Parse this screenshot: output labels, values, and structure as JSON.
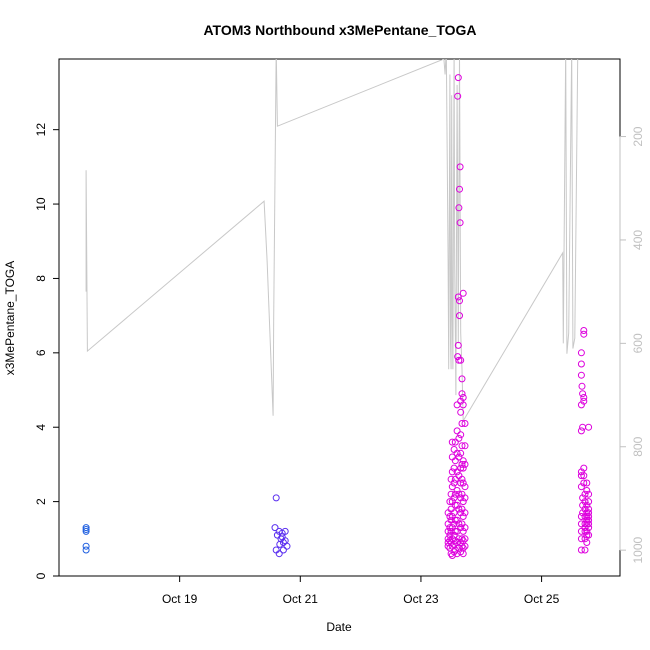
{
  "chart_data": {
    "type": "scatter",
    "title": "ATOM3 Northbound x3MePentane_TOGA",
    "xlabel": "Date",
    "ylabel": "x3MePentane_TOGA",
    "x_ticks": [
      "Oct 19",
      "Oct 21",
      "Oct 23",
      "Oct 25"
    ],
    "x_tick_days": [
      19,
      21,
      23,
      25
    ],
    "xlim_days": [
      17.0,
      26.3
    ],
    "ylim": [
      0,
      13.9
    ],
    "y_ticks": [
      0,
      2,
      4,
      6,
      8,
      10,
      12
    ],
    "y2_axis": {
      "label": "",
      "ticks": [
        200,
        400,
        600,
        800,
        1000
      ],
      "lim": [
        1050,
        50
      ],
      "reversed": true,
      "color": "#c0c0c0"
    },
    "grid": false,
    "colors": {
      "early": "#1f5fe0",
      "late": "#dd00dd",
      "line": "#c8c8c8"
    },
    "series": [
      {
        "type": "scatter",
        "color": "#1f5fe0",
        "points": [
          [
            17.45,
            1.3
          ],
          [
            17.45,
            1.25
          ],
          [
            17.45,
            1.2
          ],
          [
            17.45,
            0.8
          ],
          [
            17.45,
            0.7
          ]
        ]
      },
      {
        "type": "scatter",
        "color": "#5a2ef0",
        "points": [
          [
            20.6,
            2.1
          ],
          [
            20.58,
            1.3
          ],
          [
            20.65,
            1.2
          ],
          [
            20.7,
            1.15
          ],
          [
            20.68,
            1.0
          ],
          [
            20.6,
            0.7
          ],
          [
            20.65,
            0.6
          ],
          [
            20.75,
            1.2
          ],
          [
            20.72,
            0.9
          ],
          [
            20.78,
            0.8
          ],
          [
            20.72,
            0.7
          ],
          [
            20.7,
            1.05
          ],
          [
            20.75,
            0.95
          ],
          [
            20.66,
            0.85
          ],
          [
            20.62,
            1.1
          ]
        ]
      },
      {
        "type": "scatter",
        "color": "#dd00dd",
        "points": [
          [
            23.45,
            1.7
          ],
          [
            23.45,
            1.4
          ],
          [
            23.45,
            1.2
          ],
          [
            23.45,
            1.0
          ],
          [
            23.45,
            0.9
          ],
          [
            23.45,
            0.8
          ],
          [
            23.48,
            2.0
          ],
          [
            23.48,
            1.6
          ],
          [
            23.48,
            1.3
          ],
          [
            23.48,
            1.1
          ],
          [
            23.48,
            0.95
          ],
          [
            23.48,
            0.75
          ],
          [
            23.5,
            2.6
          ],
          [
            23.5,
            2.2
          ],
          [
            23.5,
            1.8
          ],
          [
            23.5,
            1.5
          ],
          [
            23.5,
            1.2
          ],
          [
            23.5,
            0.9
          ],
          [
            23.5,
            0.6
          ],
          [
            23.52,
            3.6
          ],
          [
            23.52,
            3.2
          ],
          [
            23.52,
            2.8
          ],
          [
            23.52,
            2.4
          ],
          [
            23.52,
            2.0
          ],
          [
            23.52,
            1.6
          ],
          [
            23.52,
            1.3
          ],
          [
            23.52,
            1.0
          ],
          [
            23.52,
            0.8
          ],
          [
            23.52,
            0.55
          ],
          [
            23.55,
            3.4
          ],
          [
            23.55,
            2.9
          ],
          [
            23.55,
            2.5
          ],
          [
            23.55,
            2.1
          ],
          [
            23.55,
            1.7
          ],
          [
            23.55,
            1.4
          ],
          [
            23.55,
            1.1
          ],
          [
            23.55,
            0.85
          ],
          [
            23.55,
            0.65
          ],
          [
            23.57,
            3.6
          ],
          [
            23.57,
            3.1
          ],
          [
            23.57,
            2.6
          ],
          [
            23.57,
            2.2
          ],
          [
            23.57,
            1.9
          ],
          [
            23.57,
            1.5
          ],
          [
            23.57,
            1.2
          ],
          [
            23.57,
            0.95
          ],
          [
            23.57,
            0.7
          ],
          [
            23.6,
            4.6
          ],
          [
            23.6,
            3.9
          ],
          [
            23.6,
            3.3
          ],
          [
            23.6,
            2.8
          ],
          [
            23.6,
            2.3
          ],
          [
            23.6,
            1.9
          ],
          [
            23.6,
            1.5
          ],
          [
            23.6,
            1.2
          ],
          [
            23.6,
            0.9
          ],
          [
            23.6,
            0.6
          ],
          [
            23.62,
            13.4
          ],
          [
            23.61,
            12.9
          ],
          [
            23.62,
            7.5
          ],
          [
            23.62,
            6.2
          ],
          [
            23.61,
            5.9
          ],
          [
            23.63,
            5.8
          ],
          [
            23.63,
            3.7
          ],
          [
            23.63,
            3.2
          ],
          [
            23.63,
            2.7
          ],
          [
            23.63,
            2.2
          ],
          [
            23.63,
            1.8
          ],
          [
            23.63,
            1.4
          ],
          [
            23.63,
            1.0
          ],
          [
            23.63,
            0.75
          ],
          [
            23.65,
            11.0
          ],
          [
            23.64,
            10.4
          ],
          [
            23.63,
            9.9
          ],
          [
            23.65,
            9.5
          ],
          [
            23.64,
            7.4
          ],
          [
            23.64,
            7.0
          ],
          [
            23.66,
            5.8
          ],
          [
            23.66,
            4.7
          ],
          [
            23.66,
            4.4
          ],
          [
            23.66,
            3.8
          ],
          [
            23.66,
            3.3
          ],
          [
            23.66,
            2.9
          ],
          [
            23.66,
            2.5
          ],
          [
            23.66,
            2.1
          ],
          [
            23.66,
            1.7
          ],
          [
            23.66,
            1.3
          ],
          [
            23.66,
            0.9
          ],
          [
            23.66,
            0.65
          ],
          [
            23.68,
            5.3
          ],
          [
            23.68,
            4.9
          ],
          [
            23.68,
            4.1
          ],
          [
            23.68,
            3.5
          ],
          [
            23.68,
            3.0
          ],
          [
            23.68,
            2.6
          ],
          [
            23.68,
            2.2
          ],
          [
            23.68,
            1.8
          ],
          [
            23.68,
            1.4
          ],
          [
            23.68,
            1.0
          ],
          [
            23.68,
            0.8
          ],
          [
            23.7,
            7.6
          ],
          [
            23.7,
            4.8
          ],
          [
            23.7,
            4.6
          ],
          [
            23.7,
            3.1
          ],
          [
            23.7,
            2.9
          ],
          [
            23.7,
            2.5
          ],
          [
            23.7,
            2.0
          ],
          [
            23.7,
            1.6
          ],
          [
            23.7,
            1.2
          ],
          [
            23.7,
            0.95
          ],
          [
            23.7,
            0.75
          ],
          [
            23.7,
            0.6
          ],
          [
            23.73,
            4.1
          ],
          [
            23.73,
            3.5
          ],
          [
            23.73,
            3.0
          ],
          [
            23.73,
            2.4
          ],
          [
            23.73,
            2.1
          ],
          [
            23.73,
            1.7
          ],
          [
            23.73,
            1.3
          ],
          [
            23.73,
            1.0
          ],
          [
            23.73,
            0.8
          ]
        ]
      },
      {
        "type": "scatter",
        "color": "#dd00dd",
        "points": [
          [
            25.66,
            6.0
          ],
          [
            25.66,
            5.7
          ],
          [
            25.66,
            5.4
          ],
          [
            25.67,
            5.1
          ],
          [
            25.68,
            4.9
          ],
          [
            25.66,
            4.6
          ],
          [
            25.68,
            4.0
          ],
          [
            25.66,
            3.9
          ],
          [
            25.66,
            2.8
          ],
          [
            25.66,
            2.7
          ],
          [
            25.66,
            2.4
          ],
          [
            25.68,
            2.1
          ],
          [
            25.68,
            1.9
          ],
          [
            25.68,
            1.7
          ],
          [
            25.66,
            1.6
          ],
          [
            25.66,
            1.4
          ],
          [
            25.66,
            1.2
          ],
          [
            25.66,
            1.0
          ],
          [
            25.66,
            0.7
          ],
          [
            25.7,
            6.6
          ],
          [
            25.7,
            6.5
          ],
          [
            25.7,
            4.8
          ],
          [
            25.7,
            4.7
          ],
          [
            25.7,
            2.9
          ],
          [
            25.7,
            2.7
          ],
          [
            25.7,
            2.5
          ],
          [
            25.72,
            2.2
          ],
          [
            25.72,
            2.0
          ],
          [
            25.72,
            1.8
          ],
          [
            25.72,
            1.6
          ],
          [
            25.72,
            1.4
          ],
          [
            25.72,
            1.3
          ],
          [
            25.72,
            1.2
          ],
          [
            25.72,
            1.0
          ],
          [
            25.72,
            0.7
          ],
          [
            25.75,
            2.5
          ],
          [
            25.75,
            2.3
          ],
          [
            25.75,
            1.9
          ],
          [
            25.75,
            1.7
          ],
          [
            25.75,
            1.6
          ],
          [
            25.75,
            1.5
          ],
          [
            25.75,
            1.4
          ],
          [
            25.75,
            1.2
          ],
          [
            25.75,
            1.1
          ],
          [
            25.75,
            0.9
          ],
          [
            25.78,
            4.0
          ],
          [
            25.78,
            2.2
          ],
          [
            25.78,
            2.0
          ],
          [
            25.78,
            1.8
          ],
          [
            25.78,
            1.7
          ],
          [
            25.78,
            1.6
          ],
          [
            25.78,
            1.5
          ],
          [
            25.78,
            1.4
          ],
          [
            25.78,
            1.3
          ],
          [
            25.78,
            1.1
          ]
        ]
      },
      {
        "type": "line",
        "axis": "right",
        "color": "#c8c8c8",
        "points": [
          [
            17.45,
            500
          ],
          [
            17.45,
            265
          ],
          [
            17.47,
            615
          ],
          [
            20.4,
            325
          ],
          [
            20.45,
            440
          ],
          [
            20.55,
            740
          ],
          [
            20.56,
            550
          ],
          [
            20.6,
            30
          ],
          [
            20.62,
            180
          ],
          [
            23.38,
            50
          ],
          [
            23.4,
            80
          ],
          [
            23.42,
            30
          ],
          [
            23.45,
            440
          ],
          [
            23.46,
            650
          ],
          [
            23.48,
            80
          ],
          [
            23.49,
            600
          ],
          [
            23.5,
            650
          ],
          [
            23.51,
            120
          ],
          [
            23.52,
            550
          ],
          [
            23.53,
            650
          ],
          [
            23.55,
            30
          ],
          [
            23.56,
            450
          ],
          [
            23.58,
            700
          ],
          [
            23.6,
            100
          ],
          [
            23.62,
            600
          ],
          [
            23.64,
            40
          ],
          [
            23.66,
            580
          ],
          [
            23.68,
            650
          ],
          [
            23.7,
            750
          ],
          [
            25.35,
            425
          ],
          [
            25.36,
            600
          ],
          [
            25.4,
            30
          ],
          [
            25.42,
            620
          ],
          [
            25.45,
            580
          ],
          [
            25.5,
            30
          ],
          [
            25.52,
            610
          ],
          [
            25.55,
            590
          ],
          [
            25.6,
            30
          ]
        ]
      }
    ]
  }
}
